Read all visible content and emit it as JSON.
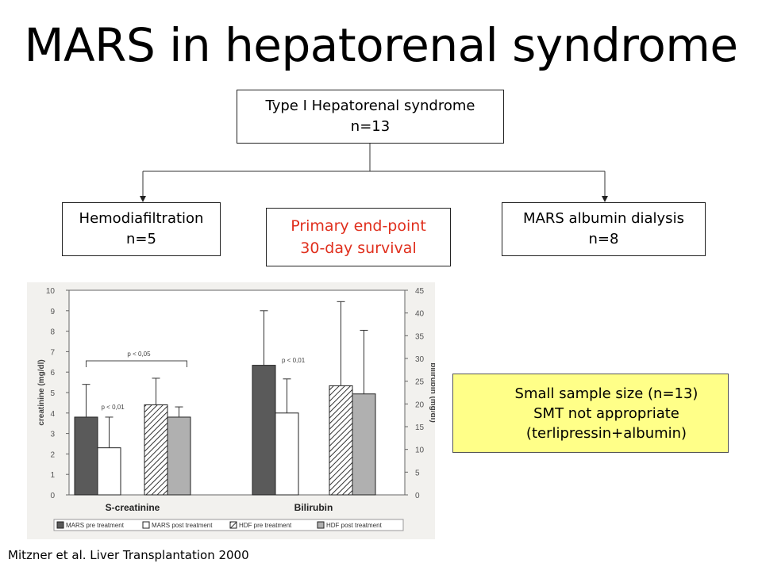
{
  "title": "MARS in hepatorenal syndrome",
  "flow": {
    "top": {
      "line1": "Type I Hepatorenal syndrome",
      "line2": "n=13"
    },
    "left": {
      "line1": "Hemodiafiltration",
      "line2": "n=5"
    },
    "right": {
      "line1": "MARS albumin dialysis",
      "line2": "n=8"
    },
    "middle": {
      "line1": "Primary end-point",
      "line2": "30-day survival",
      "color": "#e0301e"
    }
  },
  "note": {
    "line1": "Small sample size (n=13)",
    "line2": "SMT not appropriate",
    "line3": "(terlipressin+albumin)",
    "background": "#ffff88"
  },
  "citation": "Mitzner et al. Liver Transplantation 2000",
  "chart_data": {
    "type": "bar",
    "categories": [
      "S-creatinine",
      "Bilirubin"
    ],
    "series": [
      {
        "name": "MARS pre treatment",
        "values": [
          3.8,
          28.5
        ],
        "err": [
          1.6,
          12.0
        ],
        "fill": "#5a5a5a"
      },
      {
        "name": "MARS post treatment",
        "values": [
          2.3,
          18.0
        ],
        "err": [
          1.5,
          7.5
        ],
        "fill": "#ffffff"
      },
      {
        "name": "HDF pre treatment",
        "values": [
          4.4,
          24.0
        ],
        "err": [
          1.3,
          18.5
        ],
        "fill": "hatch"
      },
      {
        "name": "HDF post treatment",
        "values": [
          3.8,
          22.2
        ],
        "err": [
          0.5,
          14.0
        ],
        "fill": "#b0b0b0"
      }
    ],
    "series_axis": [
      "left",
      "left",
      "left",
      "left"
    ],
    "y_left": {
      "label": "creatinine (mg/dl)",
      "lim": [
        0,
        10
      ],
      "ticks": [
        0,
        1,
        2,
        3,
        4,
        5,
        6,
        7,
        8,
        9,
        10
      ]
    },
    "y_right": {
      "label": "bilirubin (mg/dl)",
      "lim": [
        0,
        45
      ],
      "ticks": [
        0,
        5,
        10,
        15,
        20,
        25,
        30,
        35,
        40,
        45
      ]
    },
    "annotations": [
      {
        "text": "p < 0,05",
        "target": "creatinine MARS pre vs HDF post"
      },
      {
        "text": "p < 0,01",
        "target": "creatinine MARS post"
      },
      {
        "text": "p < 0,01",
        "target": "bilirubin MARS pre"
      }
    ],
    "grid": false,
    "legend_position": "bottom"
  }
}
